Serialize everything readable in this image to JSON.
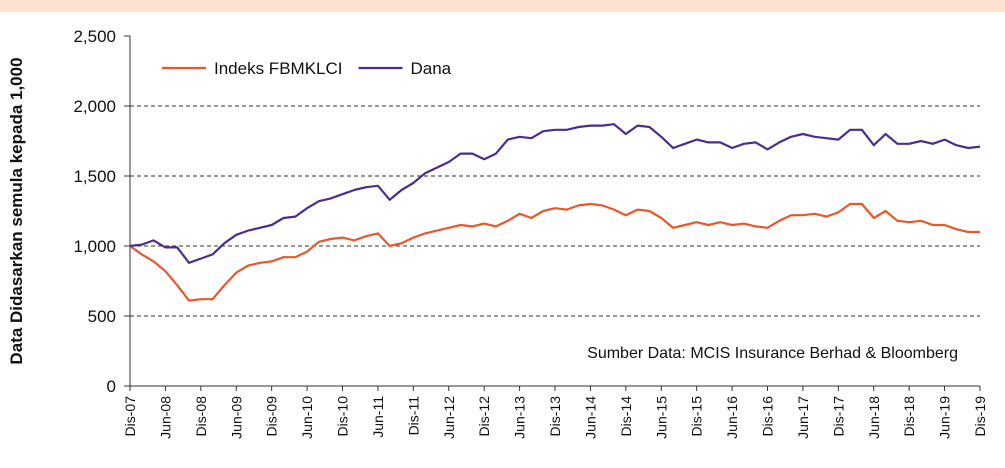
{
  "chart_data": {
    "type": "line",
    "y_label": "Data Didasarkan semula kepada 1,000",
    "annotation": "Sumber Data: MCIS Insurance Berhad & Bloomberg",
    "legend": "top-left",
    "grid": true,
    "ylim": [
      0,
      2500
    ],
    "yticks": [
      0,
      500,
      {
        "value": 1000,
        "label": "1,000"
      },
      {
        "value": 1500,
        "label": "1,500"
      },
      {
        "value": 2000,
        "label": "2,000"
      },
      {
        "value": 2500,
        "label": "2,500"
      }
    ],
    "categories": [
      "Dis-07",
      null,
      null,
      "Jun-08",
      null,
      null,
      "Dis-08",
      null,
      null,
      "Jun-09",
      null,
      null,
      "Dis-09",
      null,
      null,
      "Jun-10",
      null,
      null,
      "Dis-10",
      null,
      null,
      "Jun-11",
      null,
      null,
      "Dis-11",
      null,
      null,
      "Jun-12",
      null,
      null,
      "Dis-12",
      null,
      null,
      "Jun-13",
      null,
      null,
      "Dis-13",
      null,
      null,
      "Jun-14",
      null,
      null,
      "Dis-14",
      null,
      null,
      "Jun-15",
      null,
      null,
      "Dis-15",
      null,
      null,
      "Jun-16",
      null,
      null,
      "Dis-16",
      null,
      null,
      "Jun-17",
      null,
      null,
      "Dis-17",
      null,
      null,
      "Jun-18",
      null,
      null,
      "Dis-18",
      null,
      null,
      "Jun-19",
      null,
      null,
      "Dis-19"
    ],
    "series": [
      {
        "name": "Indeks FBMKLCI",
        "color": "#e8582a",
        "values": [
          1000,
          940,
          890,
          820,
          720,
          610,
          620,
          620,
          720,
          810,
          860,
          880,
          890,
          920,
          920,
          960,
          1030,
          1050,
          1060,
          1040,
          1070,
          1090,
          1000,
          1020,
          1060,
          1090,
          1110,
          1130,
          1150,
          1140,
          1160,
          1140,
          1180,
          1230,
          1200,
          1250,
          1270,
          1260,
          1290,
          1300,
          1290,
          1260,
          1220,
          1260,
          1250,
          1200,
          1130,
          1150,
          1170,
          1150,
          1170,
          1150,
          1160,
          1140,
          1130,
          1180,
          1220,
          1220,
          1230,
          1210,
          1240,
          1300,
          1300,
          1200,
          1250,
          1180,
          1170,
          1180,
          1150,
          1150,
          1120,
          1100,
          1100
        ]
      },
      {
        "name": "Dana",
        "color": "#4b2d8f",
        "values": [
          1000,
          1010,
          1040,
          990,
          990,
          880,
          910,
          940,
          1020,
          1080,
          1110,
          1130,
          1150,
          1200,
          1210,
          1270,
          1320,
          1340,
          1370,
          1400,
          1420,
          1430,
          1330,
          1400,
          1450,
          1520,
          1560,
          1600,
          1660,
          1660,
          1620,
          1660,
          1760,
          1780,
          1770,
          1820,
          1830,
          1830,
          1850,
          1860,
          1860,
          1870,
          1800,
          1860,
          1850,
          1780,
          1700,
          1730,
          1760,
          1740,
          1740,
          1700,
          1730,
          1740,
          1690,
          1740,
          1780,
          1800,
          1780,
          1770,
          1760,
          1830,
          1830,
          1720,
          1800,
          1730,
          1730,
          1750,
          1730,
          1760,
          1720,
          1700,
          1710
        ]
      }
    ]
  }
}
